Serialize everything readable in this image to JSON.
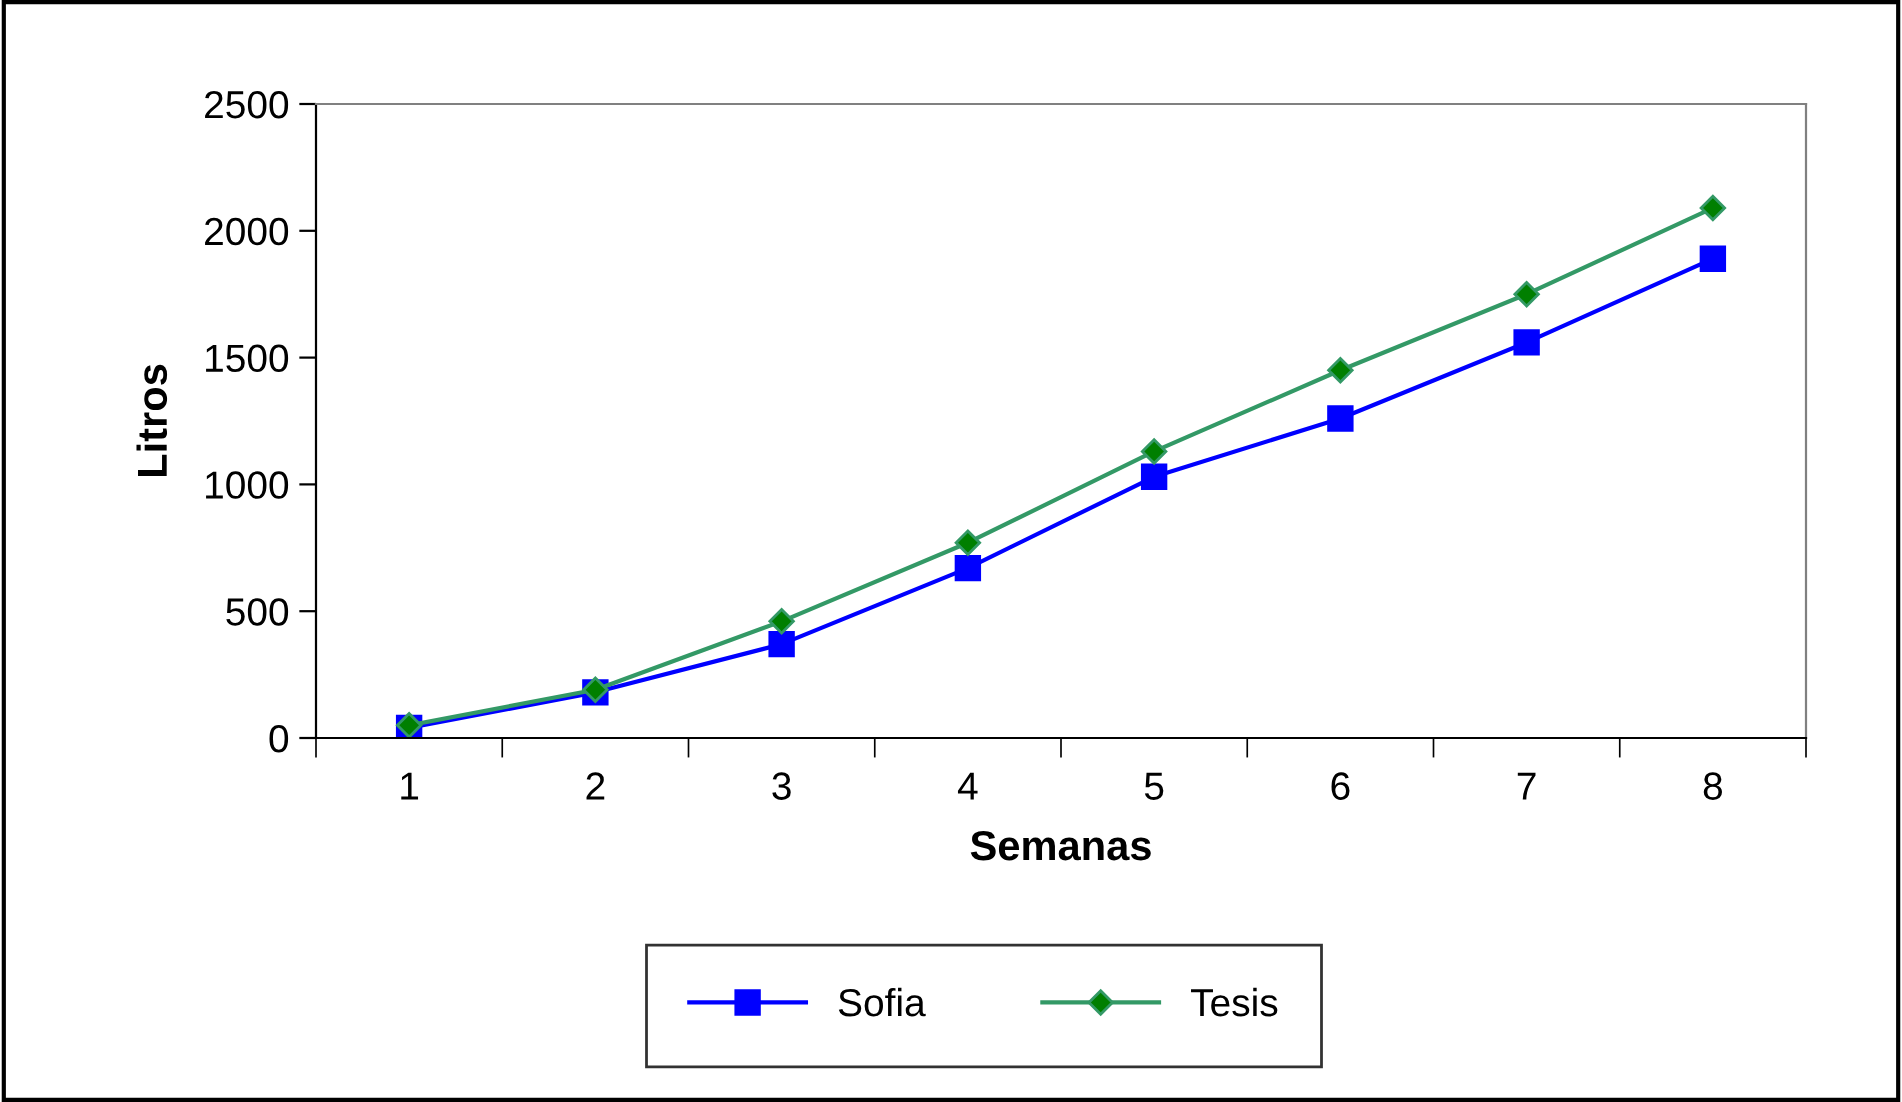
{
  "chart_data": {
    "type": "line",
    "xlabel": "Semanas",
    "ylabel": "Litros",
    "categories": [
      "1",
      "2",
      "3",
      "4",
      "5",
      "6",
      "7",
      "8"
    ],
    "series": [
      {
        "name": "Sofia",
        "color": "#0000ff",
        "marker": "square",
        "values": [
          40,
          180,
          370,
          670,
          1030,
          1260,
          1560,
          1890
        ]
      },
      {
        "name": "Tesis",
        "color": "#339966",
        "marker": "diamond",
        "values": [
          50,
          190,
          460,
          770,
          1130,
          1450,
          1750,
          2090
        ]
      }
    ],
    "ylim": [
      0,
      2500
    ],
    "yticks": [
      0,
      500,
      1000,
      1500,
      2000,
      2500
    ],
    "grid": false,
    "legend": "bottom"
  }
}
